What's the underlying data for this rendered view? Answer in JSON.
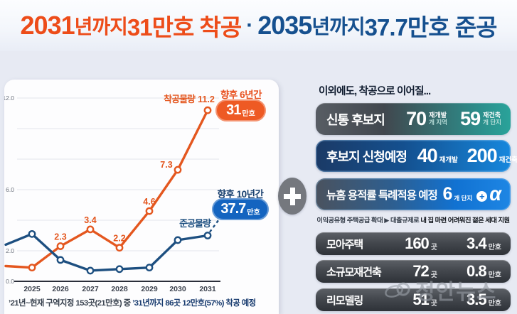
{
  "headline": {
    "parts": [
      {
        "text": "2031",
        "style": "orange-num"
      },
      {
        "text": "년까지 ",
        "style": "orange"
      },
      {
        "text": "31만호 착공",
        "style": "orange-strong"
      },
      {
        "text": "·",
        "style": "dot"
      },
      {
        "text": "2035",
        "style": "blue-num"
      },
      {
        "text": "년까지 ",
        "style": "blue"
      },
      {
        "text": "37.7만호 준공",
        "style": "blue-strong"
      }
    ]
  },
  "chart_data": {
    "type": "line",
    "categories": [
      "",
      "2025",
      "2026",
      "2027",
      "2028",
      "2029",
      "2030",
      "2031"
    ],
    "series": [
      {
        "name": "착공물량",
        "color": "#e4571f",
        "values": [
          1.0,
          0.9,
          2.3,
          3.4,
          2.2,
          4.6,
          7.3,
          11.2
        ],
        "labels": [
          null,
          null,
          "2.3",
          "3.4",
          "2.2",
          "4.6",
          "7.3",
          "11.2"
        ]
      },
      {
        "name": "준공물량",
        "color": "#1d4f80",
        "values": [
          2.4,
          3.1,
          1.4,
          0.7,
          0.8,
          0.9,
          2.7,
          3.0
        ],
        "labels": [
          null,
          null,
          null,
          null,
          null,
          null,
          null,
          null
        ],
        "projection_to_badge": true
      }
    ],
    "y_ticks": [
      {
        "label": "12.0",
        "value": 12
      },
      {
        "label": "6.0",
        "value": 6
      },
      {
        "label": "2.0",
        "value": 2
      },
      {
        "label": "0.0",
        "value": 0
      }
    ],
    "ylim": [
      0,
      12.6
    ],
    "grid": true,
    "legend_position": "inline-labels",
    "title": "",
    "xlabel": "",
    "ylabel": ""
  },
  "badges": {
    "start": {
      "title": "향후 6년간",
      "big": "31",
      "small": "만호"
    },
    "complete": {
      "title": "향후 10년간",
      "big": "37.7",
      "small": "만호"
    }
  },
  "footnote": {
    "normal": "’21년~현재 구역지정 153곳(21만호) 중 ",
    "bold": "’31년까지  86곳 12만호(57%) 착공 예정"
  },
  "right_panel": {
    "header": "이외에도, 착공으로 이어질...",
    "rows": [
      {
        "label": "신통 후보지",
        "stats": [
          {
            "num": "70",
            "unit_top": "재개발",
            "unit_bottom": "개 지역"
          },
          {
            "num": "59",
            "unit_top": "재건축",
            "unit_bottom": "개 단지"
          }
        ]
      },
      {
        "label": "후보지 신청예정",
        "stats": [
          {
            "num": "40",
            "unit": "재개발"
          },
          {
            "num": "200",
            "unit": "재건축"
          }
        ]
      },
      {
        "label": "뉴홈 용적률 특례적용 예정",
        "num": "6",
        "unit": "개 단지",
        "plus": "+",
        "alpha": "α"
      },
      {
        "label": "모아주택",
        "stats": [
          {
            "num": "160",
            "unit": "곳"
          },
          {
            "num": "3.4",
            "unit": "만호"
          }
        ]
      },
      {
        "label": "소규모재건축",
        "stats": [
          {
            "num": "72",
            "unit": "곳"
          },
          {
            "num": "0.8",
            "unit": "만호"
          }
        ]
      },
      {
        "label": "리모델링",
        "stats": [
          {
            "num": "51",
            "unit": "곳"
          },
          {
            "num": "3.5",
            "unit": "만호"
          }
        ]
      }
    ],
    "note": {
      "normal": "이익공유형 주택공급 확대 ▶ 대출규제로 ",
      "bold": "내 집 마련 어려워진 젊은 세대 지원"
    }
  },
  "watermark": {
    "text": "정안뉴스"
  }
}
